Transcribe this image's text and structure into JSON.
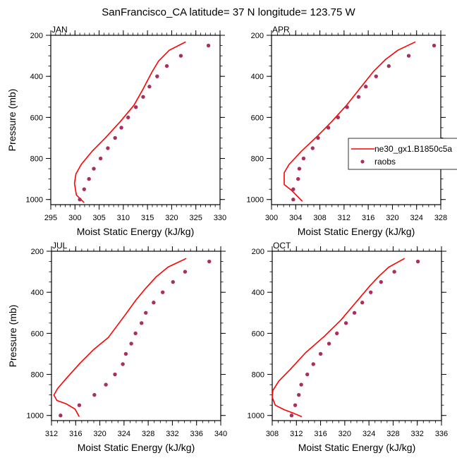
{
  "figure": {
    "title": "SanFrancisco_CA  latitude= 37 N longitude= 123.75 W"
  },
  "legend": {
    "entries": [
      {
        "label": "ne30_gx1.B1850c5a",
        "kind": "line",
        "color": "#ff0000"
      },
      {
        "label": "raobs",
        "kind": "marker",
        "color": "#a8305f"
      }
    ],
    "placement": "right of APR panel, overflowing figure edge"
  },
  "chart_data": [
    {
      "type": "line",
      "panel": "JAN",
      "title": "JAN",
      "xlabel": "Moist Static Energy (kJ/kg)",
      "ylabel": "Pressure (mb)",
      "xlim": [
        295,
        330
      ],
      "ylim": [
        1025,
        200
      ],
      "y_inverted": true,
      "xticks": [
        295,
        300,
        305,
        310,
        315,
        320,
        325,
        330
      ],
      "x_minor_step": 1,
      "yticks": [
        200,
        400,
        600,
        800,
        1000
      ],
      "y_minor_step": 50,
      "grid": false,
      "series": [
        {
          "name": "ne30_gx1.B1850c5a",
          "style": "line",
          "color": "#ff0000",
          "points": [
            [
              322.9,
              232
            ],
            [
              319.5,
              273
            ],
            [
              317.3,
              325
            ],
            [
              315.9,
              380
            ],
            [
              314.1,
              461
            ],
            [
              312.2,
              541
            ],
            [
              309.3,
              622
            ],
            [
              306.4,
              697
            ],
            [
              303.5,
              766
            ],
            [
              301.3,
              829
            ],
            [
              300.2,
              875
            ],
            [
              299.9,
              921
            ],
            [
              300.3,
              978
            ],
            [
              301.9,
              1015
            ]
          ]
        },
        {
          "name": "raobs",
          "style": "marker",
          "color": "#a8305f",
          "points": [
            [
              327.6,
              250
            ],
            [
              321.9,
              300
            ],
            [
              319.0,
              350
            ],
            [
              317.0,
              400
            ],
            [
              315.4,
              450
            ],
            [
              314.1,
              500
            ],
            [
              312.6,
              550
            ],
            [
              311.0,
              600
            ],
            [
              309.6,
              650
            ],
            [
              308.3,
              700
            ],
            [
              306.8,
              750
            ],
            [
              305.3,
              800
            ],
            [
              303.9,
              850
            ],
            [
              302.9,
              900
            ],
            [
              301.9,
              950
            ],
            [
              301.0,
              1000
            ]
          ]
        }
      ]
    },
    {
      "type": "line",
      "panel": "APR",
      "title": "APR",
      "xlabel": "Moist Static Energy (kJ/kg)",
      "ylabel": "",
      "xlim": [
        300,
        328
      ],
      "ylim": [
        1025,
        200
      ],
      "y_inverted": true,
      "xticks": [
        300,
        304,
        308,
        312,
        316,
        320,
        324,
        328
      ],
      "x_minor_step": 1,
      "yticks": [
        200,
        400,
        600,
        800,
        1000
      ],
      "y_minor_step": 50,
      "grid": false,
      "series": [
        {
          "name": "ne30_gx1.B1850c5a",
          "style": "line",
          "color": "#ff0000",
          "points": [
            [
              323.8,
              232
            ],
            [
              320.9,
              273
            ],
            [
              318.9,
              317
            ],
            [
              316.9,
              375
            ],
            [
              314.4,
              467
            ],
            [
              312.4,
              541
            ],
            [
              309.9,
              622
            ],
            [
              307.6,
              691
            ],
            [
              304.9,
              766
            ],
            [
              302.9,
              829
            ],
            [
              302.1,
              869
            ],
            [
              302.1,
              927
            ],
            [
              303.3,
              955
            ],
            [
              305.1,
              1009
            ]
          ]
        },
        {
          "name": "raobs",
          "style": "marker",
          "color": "#a8305f",
          "points": [
            [
              326.9,
              250
            ],
            [
              322.7,
              300
            ],
            [
              319.4,
              350
            ],
            [
              317.3,
              400
            ],
            [
              315.6,
              450
            ],
            [
              314.4,
              500
            ],
            [
              312.5,
              550
            ],
            [
              311.0,
              600
            ],
            [
              309.4,
              650
            ],
            [
              307.7,
              700
            ],
            [
              306.8,
              750
            ],
            [
              305.3,
              800
            ],
            [
              304.6,
              850
            ],
            [
              304.4,
              900
            ],
            [
              303.6,
              950
            ],
            [
              303.6,
              1000
            ]
          ]
        }
      ]
    },
    {
      "type": "line",
      "panel": "JUL",
      "title": "JUL",
      "xlabel": "Moist Static Energy (kJ/kg)",
      "ylabel": "Pressure (mb)",
      "xlim": [
        312,
        340
      ],
      "ylim": [
        1025,
        200
      ],
      "y_inverted": true,
      "xticks": [
        312,
        316,
        320,
        324,
        328,
        332,
        336,
        340
      ],
      "x_minor_step": 1,
      "yticks": [
        200,
        400,
        600,
        800,
        1000
      ],
      "y_minor_step": 50,
      "grid": false,
      "series": [
        {
          "name": "ne30_gx1.B1850c5a",
          "style": "line",
          "color": "#ff0000",
          "points": [
            [
              334.3,
              235
            ],
            [
              331.3,
              277
            ],
            [
              329.3,
              325
            ],
            [
              327.6,
              380
            ],
            [
              326.0,
              437
            ],
            [
              324.1,
              514
            ],
            [
              321.4,
              620
            ],
            [
              319.0,
              678
            ],
            [
              316.7,
              746
            ],
            [
              314.4,
              821
            ],
            [
              313.0,
              869
            ],
            [
              312.4,
              901
            ],
            [
              312.9,
              927
            ],
            [
              314.4,
              943
            ],
            [
              315.9,
              969
            ],
            [
              316.6,
              1006
            ]
          ]
        },
        {
          "name": "raobs",
          "style": "marker",
          "color": "#a8305f",
          "points": [
            [
              338.1,
              250
            ],
            [
              334.1,
              300
            ],
            [
              332.1,
              350
            ],
            [
              330.4,
              400
            ],
            [
              328.9,
              450
            ],
            [
              327.6,
              500
            ],
            [
              326.9,
              550
            ],
            [
              325.9,
              600
            ],
            [
              325.2,
              650
            ],
            [
              324.3,
              700
            ],
            [
              323.8,
              750
            ],
            [
              322.5,
              800
            ],
            [
              321.0,
              850
            ],
            [
              319.1,
              900
            ],
            [
              316.6,
              950
            ],
            [
              313.5,
              1000
            ]
          ]
        }
      ]
    },
    {
      "type": "line",
      "panel": "OCT",
      "title": "OCT",
      "xlabel": "Moist Static Energy (kJ/kg)",
      "ylabel": "",
      "xlim": [
        308,
        336
      ],
      "ylim": [
        1025,
        200
      ],
      "y_inverted": true,
      "xticks": [
        308,
        312,
        316,
        320,
        324,
        328,
        332,
        336
      ],
      "x_minor_step": 1,
      "yticks": [
        200,
        400,
        600,
        800,
        1000
      ],
      "y_minor_step": 50,
      "grid": false,
      "series": [
        {
          "name": "ne30_gx1.B1850c5a",
          "style": "line",
          "color": "#ff0000",
          "points": [
            [
              329.9,
              235
            ],
            [
              327.3,
              277
            ],
            [
              325.6,
              323
            ],
            [
              324.0,
              374
            ],
            [
              321.7,
              454
            ],
            [
              319.4,
              534
            ],
            [
              316.6,
              615
            ],
            [
              313.5,
              695
            ],
            [
              311.0,
              775
            ],
            [
              309.1,
              832
            ],
            [
              308.1,
              878
            ],
            [
              308.0,
              912
            ],
            [
              308.5,
              950
            ],
            [
              310.0,
              972
            ],
            [
              311.6,
              990
            ],
            [
              312.9,
              1006
            ]
          ]
        },
        {
          "name": "raobs",
          "style": "marker",
          "color": "#a8305f",
          "points": [
            [
              332.1,
              250
            ],
            [
              328.2,
              300
            ],
            [
              326.0,
              350
            ],
            [
              324.3,
              400
            ],
            [
              322.9,
              450
            ],
            [
              321.6,
              500
            ],
            [
              320.2,
              550
            ],
            [
              318.7,
              600
            ],
            [
              317.4,
              650
            ],
            [
              316.0,
              700
            ],
            [
              314.8,
              750
            ],
            [
              313.8,
              800
            ],
            [
              312.8,
              850
            ],
            [
              312.4,
              900
            ],
            [
              311.8,
              950
            ],
            [
              311.2,
              1000
            ]
          ]
        }
      ]
    }
  ]
}
